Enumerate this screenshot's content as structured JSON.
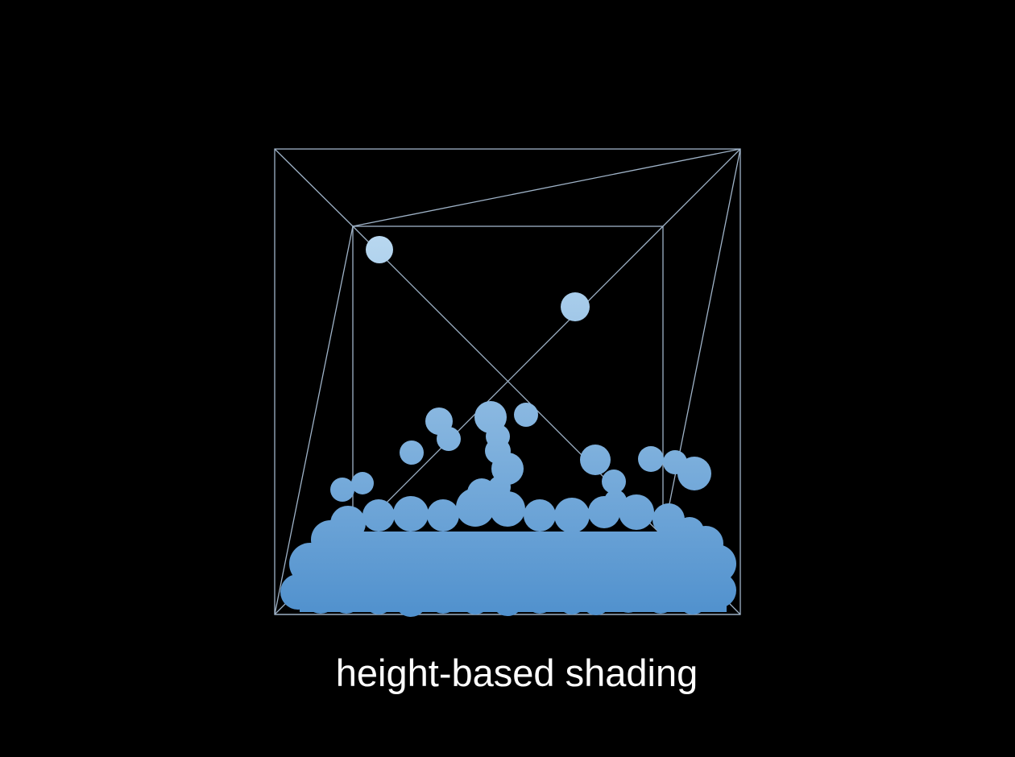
{
  "caption": "height-based shading",
  "colors": {
    "background": "#000000",
    "wireframe": "#9fb3c8",
    "particle_top": "#b9d8f0",
    "particle_bottom": "#4f90cd",
    "caption_text": "#ffffff"
  },
  "shading": {
    "mode": "height-based",
    "gradient": "lighter particles are higher in the box, darker particles are lower"
  }
}
